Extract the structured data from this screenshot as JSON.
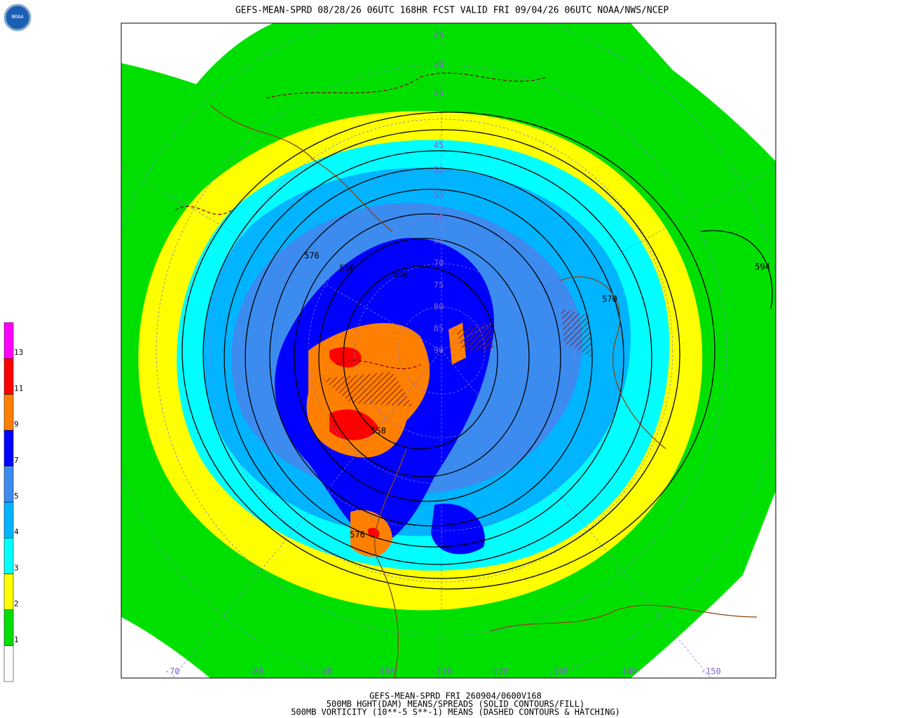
{
  "header": {
    "logo": "NOAA",
    "title": "GEFS-MEAN-SPRD 08/28/26 06UTC 168HR FCST VALID FRI 09/04/26 06UTC NOAA/NWS/NCEP"
  },
  "legend": {
    "levels": [
      1,
      2,
      3,
      4,
      5,
      7,
      9,
      11,
      13
    ],
    "colors": [
      "#ffffff",
      "#00e000",
      "#ffff00",
      "#00ffff",
      "#00b4ff",
      "#3c8cf0",
      "#0000ff",
      "#ff8000",
      "#ff0000",
      "#ff00ff"
    ]
  },
  "map": {
    "contour_labels": [
      576,
      558,
      546,
      570,
      594,
      558,
      576
    ],
    "latitude_labels": [
      25,
      30,
      35,
      45,
      50,
      55,
      60,
      65,
      70,
      75,
      80,
      85,
      90
    ],
    "longitude_labels": [
      -150,
      -140,
      -130,
      -120,
      -110,
      -100,
      -90,
      -80,
      -70
    ]
  },
  "footer": {
    "lines": [
      "GEFS-MEAN-SPRD FRI 260904/0600V168",
      "500MB HGHT(DAM) MEANS/SPREADS (SOLID CONTOURS/FILL)",
      "500MB VORTICITY (10**-5 S**-1) MEANS (DASHED CONTOURS & HATCHING)"
    ]
  }
}
